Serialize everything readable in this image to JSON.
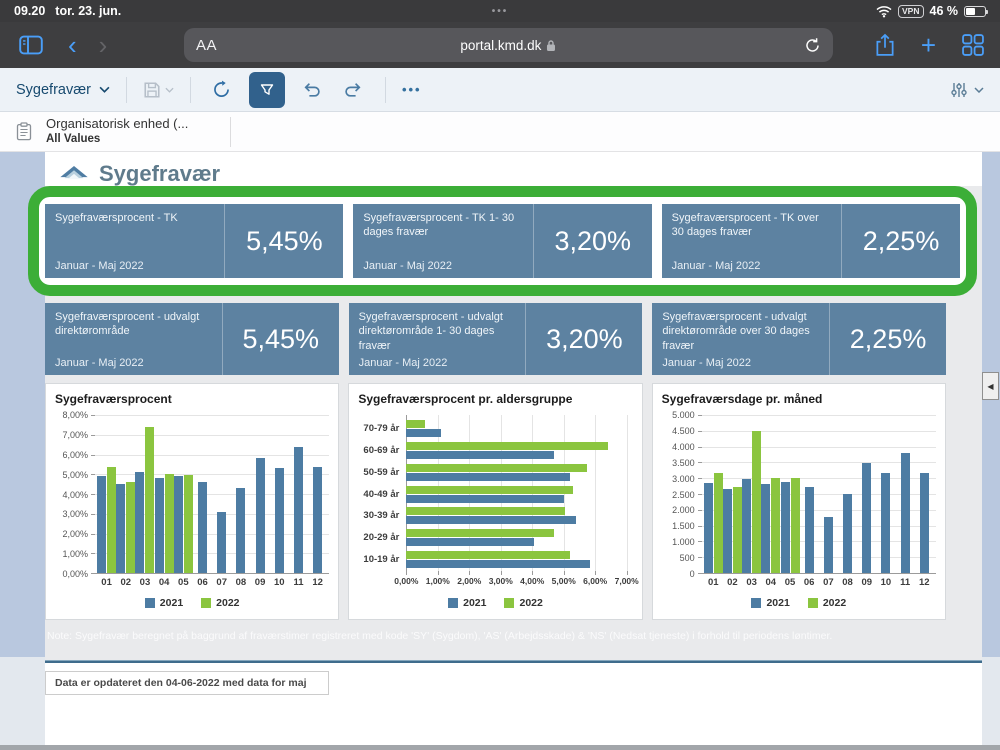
{
  "status_bar": {
    "time": "09.20",
    "date": "tor. 23. jun.",
    "page_dots": "•••",
    "vpn_label": "VPN",
    "battery_pct": "46 %"
  },
  "browser": {
    "reader_label": "AA",
    "url": "portal.kmd.dk"
  },
  "toolbar": {
    "view_name": "Sygefravær",
    "more_glyph": "•••"
  },
  "filter_bar": {
    "name": "Organisatorisk enhed (...",
    "value": "All Values"
  },
  "page": {
    "title": "Sygefravær",
    "note": "Note: Sygefravær beregnet på baggrund af fraværstimer registreret med kode 'SY' (Sygdom), 'AS' (Arbejdsskade) & 'NS' (Nedsat tjeneste) i forhold til periodens løntimer.",
    "updated": "Data er opdateret den 04-06-2022 med data for maj",
    "scroll_glyph": "◀"
  },
  "colors": {
    "kpi_blue": "#5d82a1",
    "series_2021": "#4d7ca3",
    "series_2022": "#8bc53f",
    "highlight_green": "#3cae37"
  },
  "kpi": {
    "rows": [
      {
        "cards": [
          {
            "title": "Sygefraværsprocent - TK",
            "period": "Januar - Maj 2022",
            "value": "5,45%"
          },
          {
            "title": "Sygefraværsprocent - TK 1- 30 dages fravær",
            "period": "Januar - Maj 2022",
            "value": "3,20%"
          },
          {
            "title": "Sygefraværsprocent - TK over 30 dages fravær",
            "period": "Januar - Maj 2022",
            "value": "2,25%"
          }
        ]
      },
      {
        "cards": [
          {
            "title": "Sygefraværsprocent - udvalgt direktørområde",
            "period": "Januar - Maj 2022",
            "value": "5,45%"
          },
          {
            "title": "Sygefraværsprocent - udvalgt direktørområde 1- 30 dages fravær",
            "period": "Januar - Maj 2022",
            "value": "3,20%"
          },
          {
            "title": "Sygefraværsprocent - udvalgt direktørområde over 30 dages fravær",
            "period": "Januar - Maj 2022",
            "value": "2,25%"
          }
        ]
      }
    ]
  },
  "chart_data": [
    {
      "type": "bar",
      "title": "Sygefraværsprocent",
      "categories": [
        "01",
        "02",
        "03",
        "04",
        "05",
        "06",
        "07",
        "08",
        "09",
        "10",
        "11",
        "12"
      ],
      "series": [
        {
          "name": "2021",
          "color": "#4d7ca3",
          "values": [
            4.9,
            4.5,
            5.1,
            4.8,
            4.9,
            4.6,
            3.1,
            4.3,
            5.8,
            5.3,
            6.4,
            5.35
          ]
        },
        {
          "name": "2022",
          "color": "#8bc53f",
          "values": [
            5.35,
            4.6,
            7.4,
            5.0,
            4.95,
            null,
            null,
            null,
            null,
            null,
            null,
            null
          ]
        }
      ],
      "ylim": [
        0,
        8
      ],
      "yticks": [
        "8,00%",
        "7,00%",
        "6,00%",
        "5,00%",
        "4,00%",
        "3,00%",
        "2,00%",
        "1,00%",
        "0,00%"
      ],
      "ymax": 8,
      "grid": true,
      "legend_position": "bottom"
    },
    {
      "type": "horizontal-bar",
      "title": "Sygefraværsprocent pr. aldersgruppe",
      "categories": [
        "70-79 år",
        "60-69 år",
        "50-59 år",
        "40-49 år",
        "30-39 år",
        "20-29 år",
        "10-19 år"
      ],
      "series": [
        {
          "name": "2021",
          "color": "#4d7ca3",
          "values": [
            1.1,
            4.7,
            5.2,
            5.0,
            5.4,
            4.05,
            5.85
          ]
        },
        {
          "name": "2022",
          "color": "#8bc53f",
          "values": [
            0.6,
            6.4,
            5.75,
            5.3,
            5.05,
            4.7,
            5.2
          ]
        }
      ],
      "xlim": [
        0,
        7
      ],
      "xticks": [
        "0,00%",
        "1,00%",
        "2,00%",
        "3,00%",
        "4,00%",
        "5,00%",
        "6,00%",
        "7,00%"
      ],
      "xmax": 7,
      "grid": true,
      "legend_position": "bottom"
    },
    {
      "type": "bar",
      "title": "Sygefraværsdage pr. måned",
      "categories": [
        "01",
        "02",
        "03",
        "04",
        "05",
        "06",
        "07",
        "08",
        "09",
        "10",
        "11",
        "12"
      ],
      "series": [
        {
          "name": "2021",
          "color": "#4d7ca3",
          "values": [
            2850,
            2650,
            2980,
            2830,
            2880,
            2720,
            1780,
            2500,
            3480,
            3150,
            3800,
            3180
          ]
        },
        {
          "name": "2022",
          "color": "#8bc53f",
          "values": [
            3150,
            2720,
            4480,
            3000,
            3000,
            null,
            null,
            null,
            null,
            null,
            null,
            null
          ]
        }
      ],
      "ylim": [
        0,
        5000
      ],
      "yticks": [
        "5.000",
        "4.500",
        "4.000",
        "3.500",
        "3.000",
        "2.500",
        "2.000",
        "1.500",
        "1.000",
        "500",
        "0"
      ],
      "ymax": 5000,
      "grid": true,
      "legend_position": "bottom"
    }
  ]
}
